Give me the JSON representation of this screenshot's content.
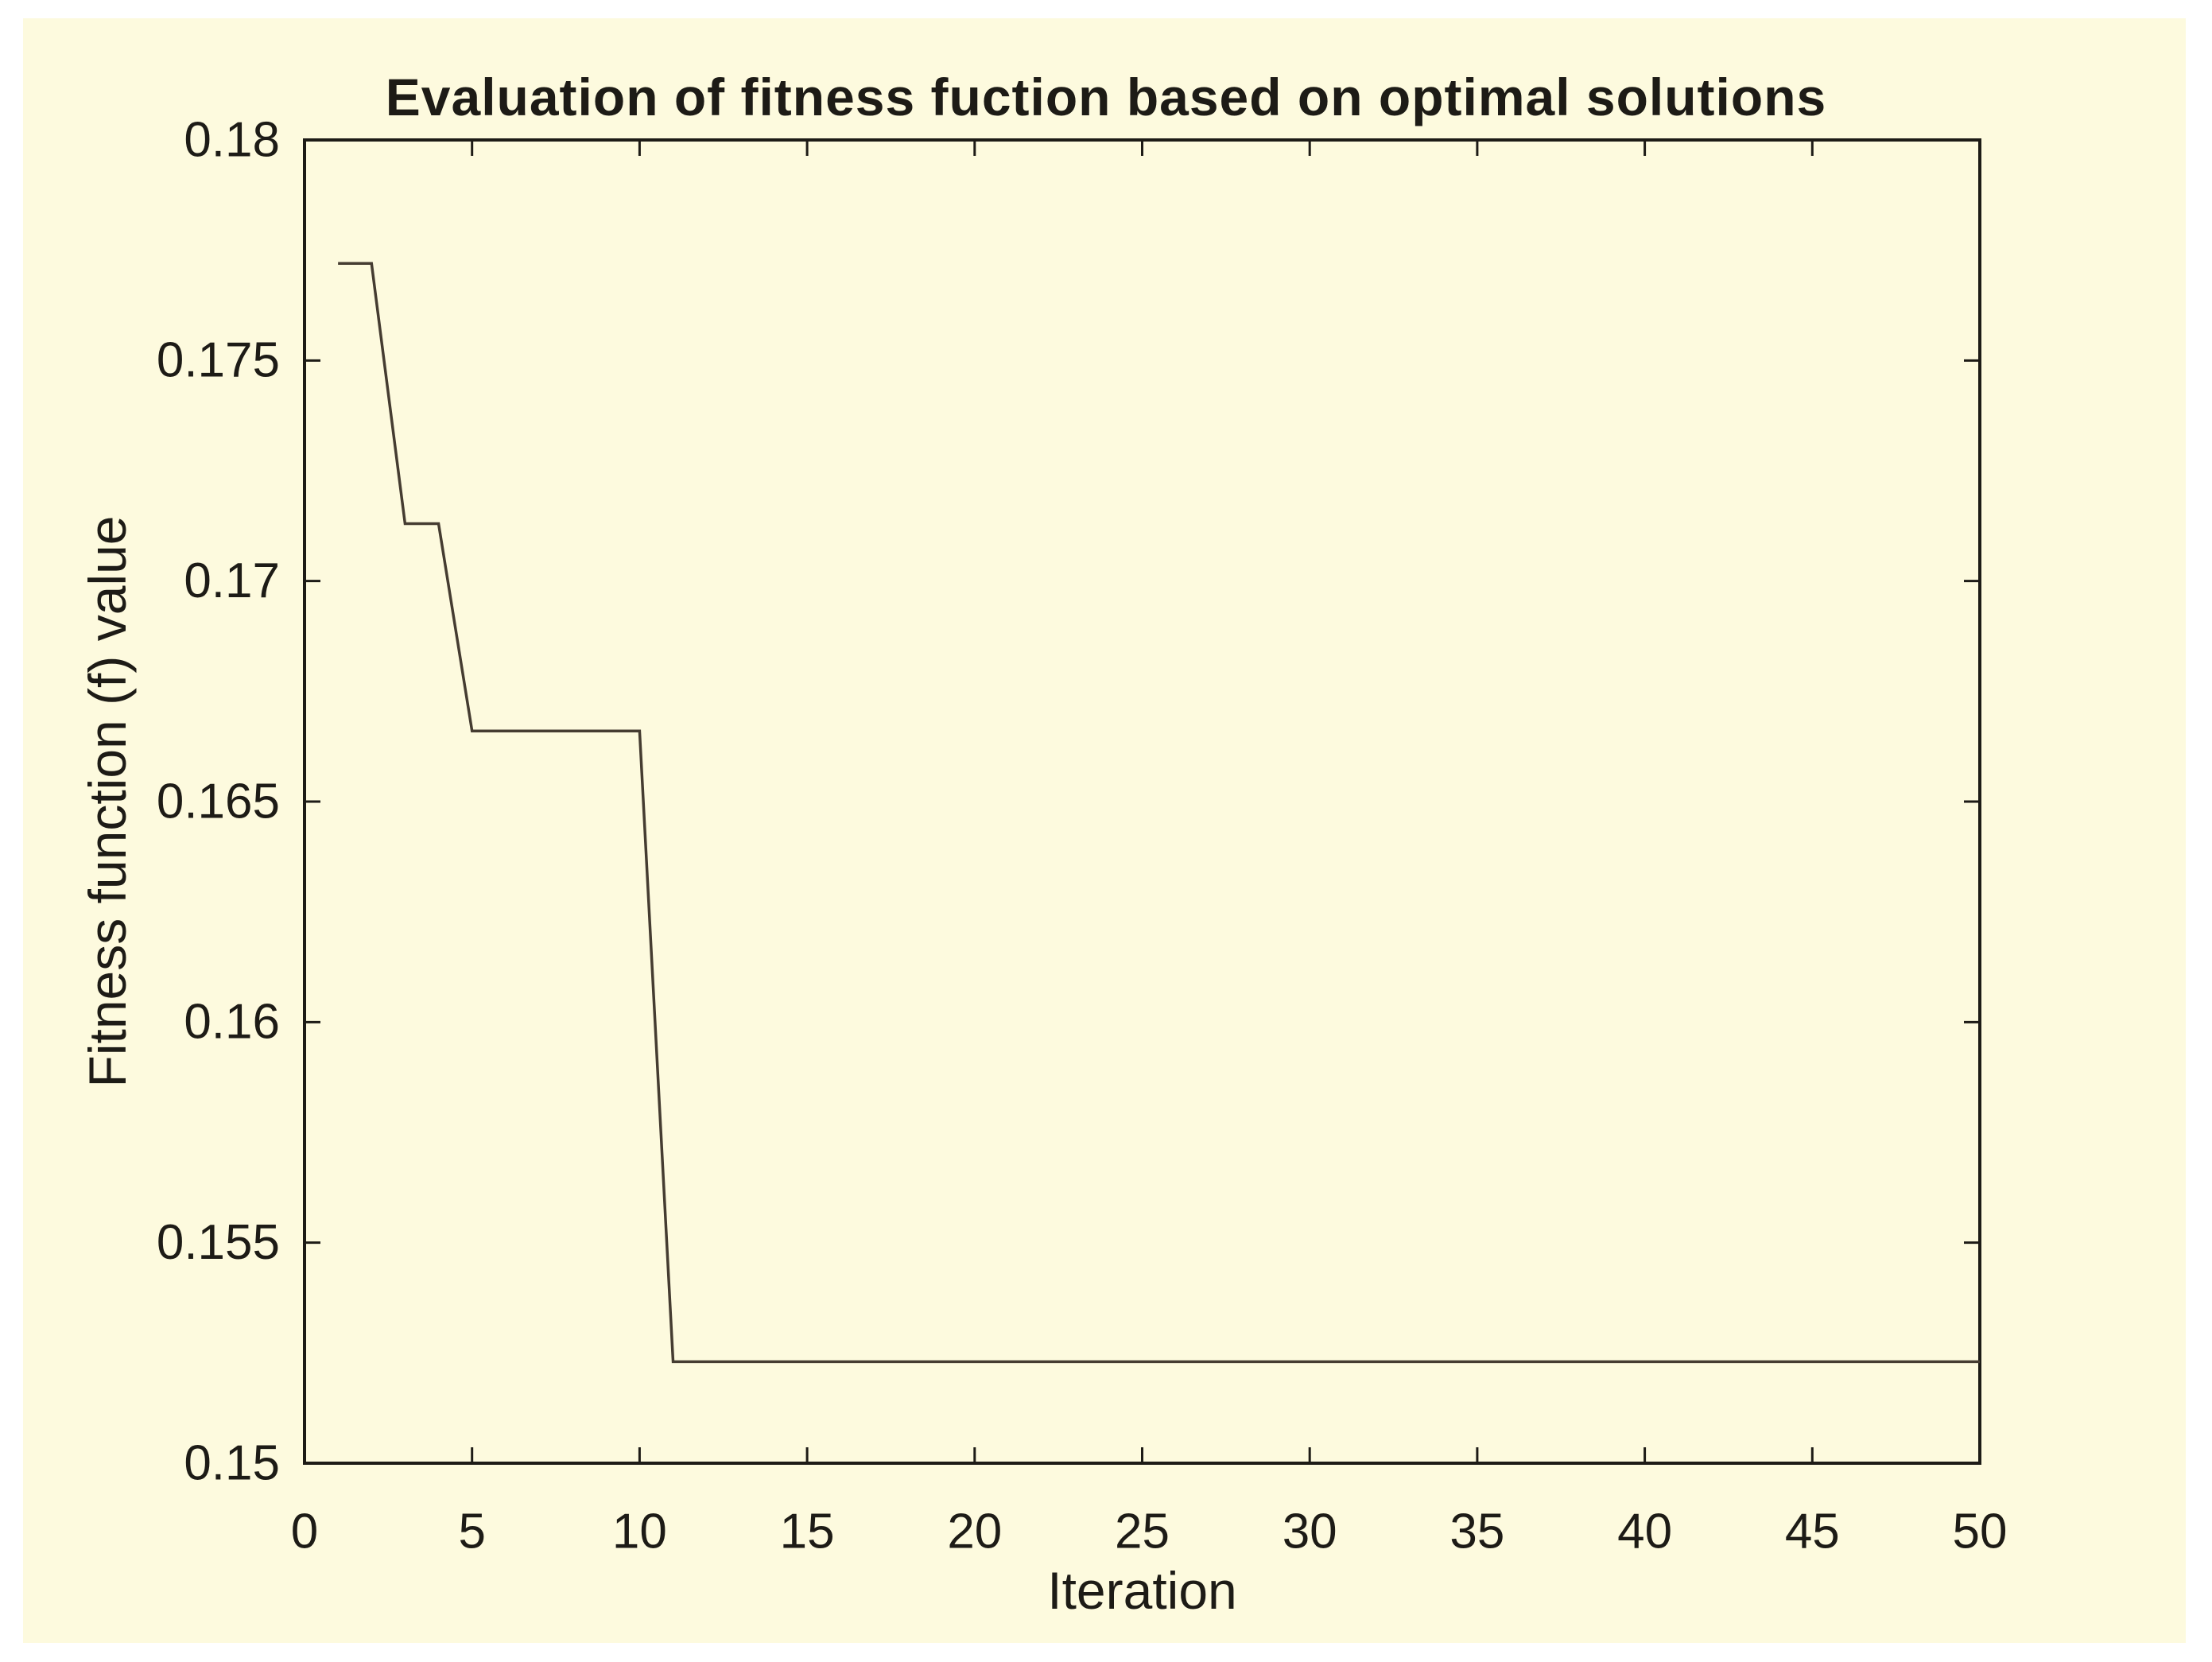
{
  "figure": {
    "margin_background": "#ffffff",
    "canvas_background": "#fdfade",
    "axis_color": "#1d1b16",
    "line_color": "#453c31",
    "text_color": "#1d1b16"
  },
  "chart_data": {
    "type": "line",
    "title": "Evaluation of fitness fuction based on optimal solutions",
    "xlabel": "Iteration",
    "ylabel": "Fitness function (f) value",
    "x": [
      1,
      2,
      3,
      4,
      5,
      10,
      11,
      50
    ],
    "y": [
      0.1772,
      0.1772,
      0.1713,
      0.1713,
      0.1666,
      0.1666,
      0.1523,
      0.1523
    ],
    "xlim": [
      0,
      50
    ],
    "ylim": [
      0.15,
      0.18
    ],
    "xticks": [
      0,
      5,
      10,
      15,
      20,
      25,
      30,
      35,
      40,
      45,
      50
    ],
    "xtick_labels": [
      "0",
      "5",
      "10",
      "15",
      "20",
      "25",
      "30",
      "35",
      "40",
      "45",
      "50"
    ],
    "yticks": [
      0.15,
      0.155,
      0.16,
      0.165,
      0.17,
      0.175,
      0.18
    ],
    "ytick_labels": [
      "0.15",
      "0.155",
      "0.16",
      "0.165",
      "0.17",
      "0.175",
      "0.18"
    ],
    "grid": false,
    "legend": null,
    "box": true
  }
}
